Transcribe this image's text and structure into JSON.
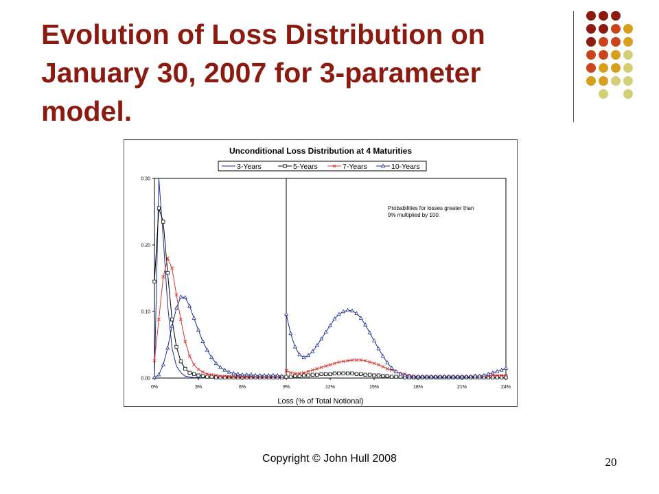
{
  "slide": {
    "title": "Evolution of Loss Distribution on January 30, 2007 for 3-parameter model.",
    "footer": "Copyright © John Hull  2008",
    "page_number": "20",
    "decoration_colors": [
      "#8b1a10",
      "#c8441a",
      "#d6a01e",
      "#d3cf76"
    ]
  },
  "chart_data": {
    "type": "line",
    "title": "Unconditional Loss Distribution at 4 Maturities",
    "xlabel": "Loss (% of Total Notional)",
    "ylabel": "",
    "annotation": "Probabilities for losses greater than 9% multiplied by 100.",
    "x_ticks": [
      "0%",
      "3%",
      "6%",
      "9%",
      "12%",
      "15%",
      "18%",
      "21%",
      "24%"
    ],
    "y_ticks": [
      "0.00",
      "0.10",
      "0.20",
      "0.30"
    ],
    "xlim": [
      0,
      24
    ],
    "ylim": [
      0,
      0.3
    ],
    "break_at": 9,
    "legend_position": "top",
    "grid": false,
    "series": [
      {
        "name": "3-Years",
        "color": "#1c2d8c",
        "marker": "none",
        "x": [
          0,
          0.3,
          0.6,
          0.9,
          1.2,
          1.5,
          1.8,
          2.1,
          2.4,
          2.7,
          3.0,
          3.3,
          3.6,
          4.2,
          4.8,
          5.4,
          6.0,
          6.6,
          7.2,
          7.8,
          8.4,
          9.0
        ],
        "y": [
          0.0,
          0.3,
          0.21,
          0.11,
          0.045,
          0.018,
          0.008,
          0.003,
          0.0015,
          0.0008,
          0.0005,
          0.0003,
          0.0002,
          0.0001,
          0.0001,
          0.0,
          0.0,
          0.0,
          0.0,
          0.0,
          0.0,
          0.0
        ]
      },
      {
        "name": "5-Years",
        "color": "#000000",
        "marker": "square",
        "x": [
          0,
          0.3,
          0.6,
          0.9,
          1.2,
          1.5,
          1.8,
          2.1,
          2.4,
          2.7,
          3.0,
          3.3,
          3.6,
          3.9,
          4.2,
          4.5,
          4.8,
          5.1,
          5.4,
          5.7,
          6.0,
          6.3,
          6.6,
          6.9,
          7.2,
          7.5,
          7.8,
          8.1,
          8.4,
          8.7,
          9.0,
          9.3,
          9.6,
          9.9,
          10.2,
          10.5,
          10.8,
          11.1,
          11.4,
          11.7,
          12.0,
          12.3,
          12.6,
          12.9,
          13.2,
          13.5,
          13.8,
          14.1,
          14.4,
          14.7,
          15.0,
          15.3,
          15.6,
          15.9,
          16.2,
          16.5,
          16.8,
          17.1,
          17.4,
          17.7,
          18.0,
          18.3,
          18.6,
          18.9,
          19.2,
          19.5,
          19.8,
          20.1,
          20.4,
          20.7,
          21.0,
          21.3,
          21.6,
          21.9,
          22.2,
          22.5,
          22.8,
          23.1,
          23.4,
          23.7,
          24.0
        ],
        "y": [
          0.145,
          0.255,
          0.235,
          0.158,
          0.088,
          0.047,
          0.025,
          0.014,
          0.008,
          0.006,
          0.004,
          0.003,
          0.002,
          0.002,
          0.001,
          0.001,
          0.001,
          0.001,
          0.001,
          0.001,
          0.001,
          0.001,
          0.001,
          0.001,
          0.001,
          0.001,
          0.001,
          0.001,
          0.001,
          0.001,
          0.002,
          0.002,
          0.003,
          0.003,
          0.004,
          0.004,
          0.005,
          0.005,
          0.006,
          0.006,
          0.006,
          0.007,
          0.007,
          0.007,
          0.007,
          0.007,
          0.006,
          0.006,
          0.005,
          0.005,
          0.004,
          0.004,
          0.003,
          0.003,
          0.002,
          0.002,
          0.002,
          0.001,
          0.001,
          0.001,
          0.001,
          0.001,
          0.001,
          0.001,
          0.001,
          0.001,
          0.001,
          0.001,
          0.001,
          0.001,
          0.001,
          0.001,
          0.001,
          0.001,
          0.001,
          0.001,
          0.001,
          0.001,
          0.001,
          0.001,
          0.001
        ]
      },
      {
        "name": "7-Years",
        "color": "#d03a32",
        "marker": "x",
        "x": [
          0,
          0.3,
          0.6,
          0.9,
          1.2,
          1.5,
          1.8,
          2.1,
          2.4,
          2.7,
          3.0,
          3.3,
          3.6,
          3.9,
          4.2,
          4.5,
          4.8,
          5.1,
          5.4,
          5.7,
          6.0,
          6.3,
          6.6,
          6.9,
          7.2,
          7.5,
          7.8,
          8.1,
          8.4,
          8.7,
          9.0,
          9.3,
          9.6,
          9.9,
          10.2,
          10.5,
          10.8,
          11.1,
          11.4,
          11.7,
          12.0,
          12.3,
          12.6,
          12.9,
          13.2,
          13.5,
          13.8,
          14.1,
          14.4,
          14.7,
          15.0,
          15.3,
          15.6,
          15.9,
          16.2,
          16.5,
          16.8,
          17.1,
          17.4,
          17.7,
          18.0,
          18.3,
          18.6,
          18.9,
          19.2,
          19.5,
          19.8,
          20.1,
          20.4,
          20.7,
          21.0,
          21.3,
          21.6,
          21.9,
          22.2,
          22.5,
          22.8,
          23.1,
          23.4,
          23.7,
          24.0
        ],
        "y": [
          0.026,
          0.088,
          0.152,
          0.18,
          0.165,
          0.125,
          0.088,
          0.055,
          0.033,
          0.02,
          0.013,
          0.009,
          0.006,
          0.005,
          0.004,
          0.003,
          0.003,
          0.002,
          0.002,
          0.002,
          0.002,
          0.002,
          0.002,
          0.002,
          0.002,
          0.002,
          0.002,
          0.002,
          0.002,
          0.002,
          0.011,
          0.008,
          0.007,
          0.007,
          0.008,
          0.01,
          0.012,
          0.014,
          0.016,
          0.018,
          0.02,
          0.022,
          0.024,
          0.025,
          0.026,
          0.027,
          0.027,
          0.027,
          0.026,
          0.024,
          0.022,
          0.02,
          0.017,
          0.014,
          0.012,
          0.009,
          0.007,
          0.006,
          0.004,
          0.003,
          0.002,
          0.002,
          0.002,
          0.002,
          0.002,
          0.002,
          0.002,
          0.002,
          0.002,
          0.002,
          0.002,
          0.002,
          0.002,
          0.003,
          0.003,
          0.003,
          0.003,
          0.004,
          0.004,
          0.004,
          0.004
        ]
      },
      {
        "name": "10-Years",
        "color": "#1c2d8c",
        "marker": "triangle",
        "x": [
          0,
          0.3,
          0.6,
          0.9,
          1.2,
          1.5,
          1.8,
          2.1,
          2.4,
          2.7,
          3.0,
          3.3,
          3.6,
          3.9,
          4.2,
          4.5,
          4.8,
          5.1,
          5.4,
          5.7,
          6.0,
          6.3,
          6.6,
          6.9,
          7.2,
          7.5,
          7.8,
          8.1,
          8.4,
          8.7,
          9.0,
          9.3,
          9.6,
          9.9,
          10.2,
          10.5,
          10.8,
          11.1,
          11.4,
          11.7,
          12.0,
          12.3,
          12.6,
          12.9,
          13.2,
          13.5,
          13.8,
          14.1,
          14.4,
          14.7,
          15.0,
          15.3,
          15.6,
          15.9,
          16.2,
          16.5,
          16.8,
          17.1,
          17.4,
          17.7,
          18.0,
          18.3,
          18.6,
          18.9,
          19.2,
          19.5,
          19.8,
          20.1,
          20.4,
          20.7,
          21.0,
          21.3,
          21.6,
          21.9,
          22.2,
          22.5,
          22.8,
          23.1,
          23.4,
          23.7,
          24.0
        ],
        "y": [
          0.001,
          0.005,
          0.02,
          0.045,
          0.078,
          0.105,
          0.122,
          0.121,
          0.108,
          0.09,
          0.072,
          0.055,
          0.042,
          0.031,
          0.022,
          0.016,
          0.012,
          0.009,
          0.007,
          0.006,
          0.005,
          0.005,
          0.005,
          0.004,
          0.004,
          0.004,
          0.004,
          0.004,
          0.004,
          0.003,
          0.096,
          0.067,
          0.047,
          0.035,
          0.031,
          0.034,
          0.04,
          0.049,
          0.059,
          0.069,
          0.079,
          0.089,
          0.096,
          0.1,
          0.102,
          0.101,
          0.097,
          0.09,
          0.08,
          0.068,
          0.056,
          0.044,
          0.033,
          0.023,
          0.015,
          0.01,
          0.006,
          0.004,
          0.003,
          0.002,
          0.002,
          0.002,
          0.002,
          0.002,
          0.002,
          0.002,
          0.002,
          0.002,
          0.002,
          0.002,
          0.002,
          0.002,
          0.002,
          0.003,
          0.003,
          0.004,
          0.006,
          0.008,
          0.01,
          0.012,
          0.015
        ]
      }
    ]
  }
}
